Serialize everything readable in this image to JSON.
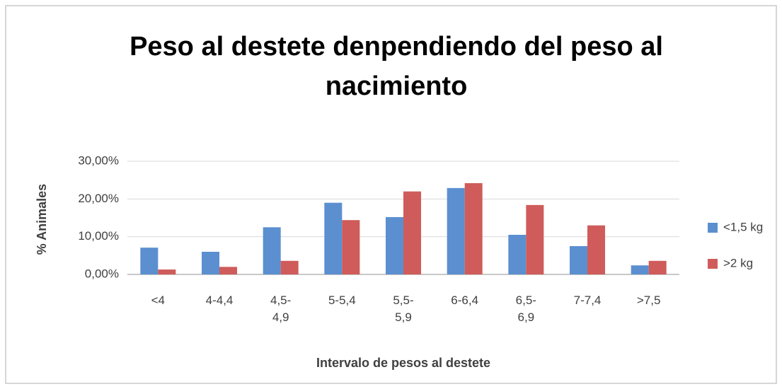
{
  "chart_data": {
    "type": "bar",
    "title": "Peso al destete denpendiendo del peso al nacimiento",
    "x_label": "Intervalo de pesos al destete",
    "y_label": "% Animales",
    "categories": [
      "<4",
      "4-4,4",
      "4,5-4,9",
      "5-5,4",
      "5,5-5,9",
      "6-6,4",
      "6,5-6,9",
      "7-7,4",
      ">7,5"
    ],
    "series": [
      {
        "name": "<1,5 kg",
        "color": "#5b8fd0",
        "values": [
          7.1,
          6,
          12.5,
          19,
          15.2,
          22.9,
          10.5,
          7.5,
          2.4
        ]
      },
      {
        "name": ">2 kg",
        "color": "#cf5c5a",
        "values": [
          1.3,
          2,
          3.6,
          14.4,
          22,
          24.2,
          18.4,
          13,
          3.6
        ]
      }
    ],
    "ylim": [
      0,
      30
    ],
    "yticks": [
      {
        "value": 0,
        "label": "0,00%"
      },
      {
        "value": 10,
        "label": "10,00%"
      },
      {
        "value": 20,
        "label": "20,00%"
      },
      {
        "value": 30,
        "label": "30,00%"
      }
    ],
    "grid": true,
    "legend": "right"
  }
}
